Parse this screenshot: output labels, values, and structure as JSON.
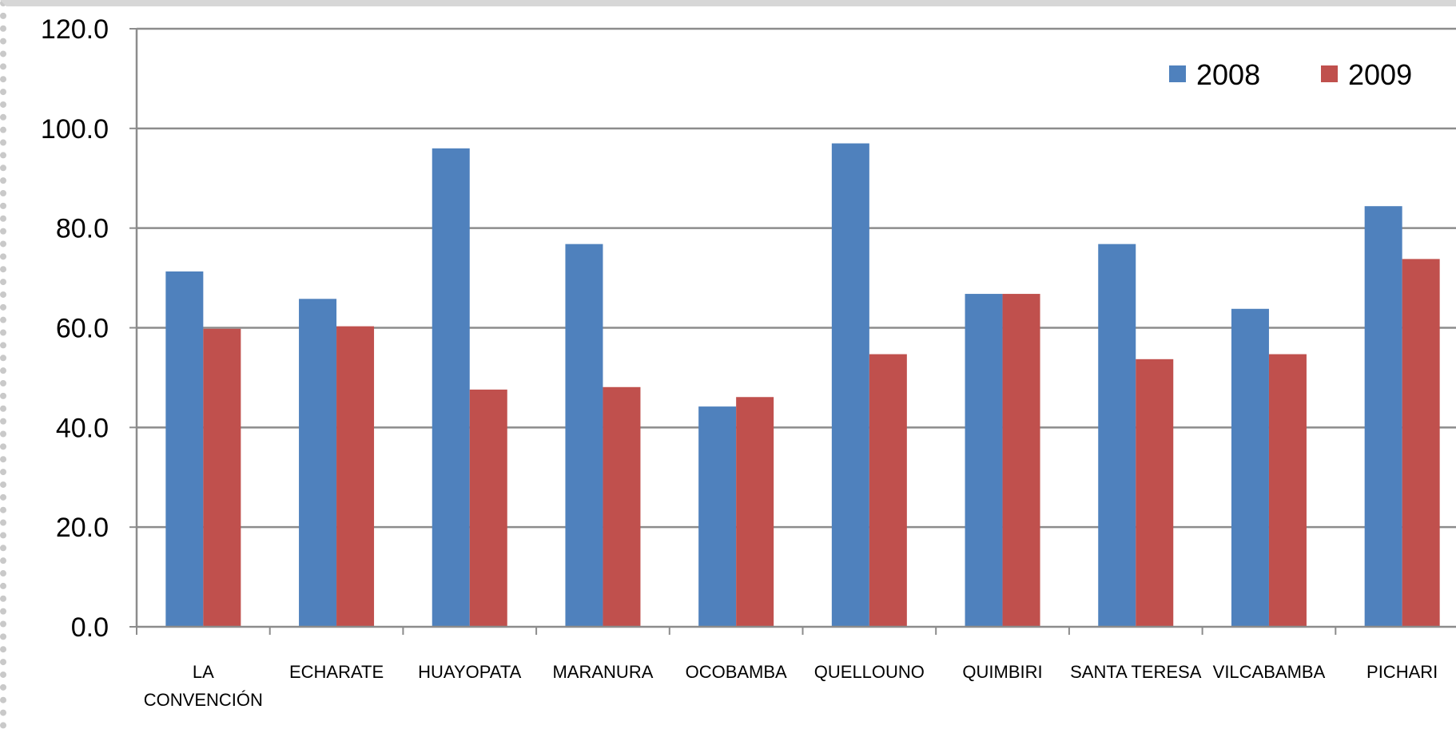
{
  "chart_data": {
    "type": "bar",
    "categories": [
      "LA CONVENCIÓN",
      "ECHARATE",
      "HUAYOPATA",
      "MARANURA",
      "OCOBAMBA",
      "QUELLOUNO",
      "QUIMBIRI",
      "SANTA TERESA",
      "VILCABAMBA",
      "PICHARI"
    ],
    "category_lines": [
      [
        "LA",
        "CONVENCIÓN"
      ],
      [
        "ECHARATE"
      ],
      [
        "HUAYOPATA"
      ],
      [
        "MARANURA"
      ],
      [
        "OCOBAMBA"
      ],
      [
        "QUELLOUNO"
      ],
      [
        "QUIMBIRI"
      ],
      [
        "SANTA TERESA"
      ],
      [
        "VILCABAMBA"
      ],
      [
        "PICHARI"
      ]
    ],
    "series": [
      {
        "name": "2008",
        "color": "#4f81bd",
        "values": [
          71.3,
          65.8,
          96.0,
          76.8,
          44.2,
          97.0,
          66.8,
          76.8,
          63.8,
          84.4
        ]
      },
      {
        "name": "2009",
        "color": "#c0504d",
        "values": [
          59.8,
          60.3,
          47.6,
          48.1,
          46.1,
          54.7,
          66.8,
          53.7,
          54.7,
          73.8
        ]
      }
    ],
    "ylim": [
      0,
      120
    ],
    "yticks": [
      "0.0",
      "20.0",
      "40.0",
      "60.0",
      "80.0",
      "100.0",
      "120.0"
    ],
    "title": "",
    "xlabel": "",
    "ylabel": "",
    "grid": true,
    "legend_position": "top-right"
  }
}
